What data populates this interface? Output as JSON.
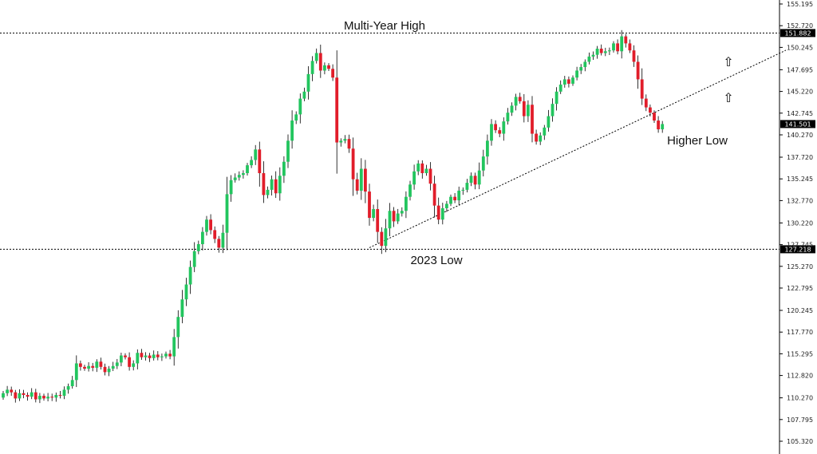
{
  "chart_data": {
    "type": "candlestick",
    "title": "",
    "xlabel": "",
    "ylabel": "",
    "ylim": [
      104.9,
      155.2
    ],
    "y_ticks": [
      "155.195",
      "152.720",
      "150.245",
      "147.695",
      "145.220",
      "142.745",
      "140.270",
      "137.720",
      "135.245",
      "132.770",
      "130.220",
      "127.745",
      "125.270",
      "122.795",
      "120.245",
      "117.770",
      "115.295",
      "112.820",
      "110.270",
      "107.795",
      "105.320"
    ],
    "grid": false,
    "colors": {
      "up": "#22c55e",
      "down": "#e11d2a",
      "wick": "#000000",
      "box": "#000000"
    },
    "levels": [
      {
        "value": 151.882,
        "label": "151.882",
        "style": "dotted"
      },
      {
        "value": 127.218,
        "label": "127.218",
        "style": "dotted"
      }
    ],
    "current_price": {
      "value": 141.501,
      "label": "141.501"
    },
    "annotations": [
      {
        "text": "Multi-Year High"
      },
      {
        "text": "2023 Low"
      },
      {
        "text": "Higher Low"
      }
    ],
    "trendline": {
      "from_index": 90,
      "from_value": 127.4,
      "to_index": 170,
      "to_value": 145.0
    },
    "arrows": [
      {
        "symbol": "⇧",
        "index": 154,
        "value": 148.0
      },
      {
        "symbol": "⇧",
        "index": 154,
        "value": 144.0
      }
    ],
    "closes": [
      110.8,
      111.2,
      110.9,
      110.2,
      110.8,
      110.6,
      110.4,
      110.9,
      110.1,
      110.5,
      110.2,
      110.4,
      110.3,
      110.6,
      110.5,
      111.2,
      111.6,
      112.3,
      114.2,
      113.8,
      113.6,
      113.9,
      113.7,
      114.4,
      113.8,
      113.2,
      113.6,
      113.9,
      114.3,
      115.1,
      114.9,
      113.8,
      114.2,
      115.4,
      114.9,
      115.1,
      114.8,
      115.2,
      114.9,
      115.0,
      115.3,
      115.0,
      117.2,
      119.5,
      121.5,
      123.2,
      125.2,
      127.0,
      127.8,
      129.2,
      130.6,
      129.4,
      128.4,
      127.4,
      129.1,
      133.5,
      135.1,
      135.4,
      135.7,
      135.9,
      136.8,
      137.4,
      138.6,
      135.9,
      133.4,
      134.0,
      135.2,
      133.6,
      135.6,
      137.2,
      139.6,
      141.9,
      142.6,
      144.4,
      145.2,
      147.2,
      148.7,
      149.6,
      147.6,
      148.2,
      147.8,
      146.8,
      139.4,
      139.6,
      139.8,
      138.7,
      135.2,
      133.9,
      136.4,
      133.8,
      130.8,
      131.8,
      129.2,
      127.6,
      129.6,
      131.6,
      130.4,
      131.3,
      131.6,
      133.2,
      134.6,
      136.1,
      137.0,
      135.9,
      136.4,
      134.7,
      132.2,
      130.6,
      131.9,
      132.4,
      133.2,
      132.8,
      133.9,
      134.0,
      134.8,
      135.6,
      134.6,
      136.2,
      137.8,
      139.6,
      141.5,
      140.8,
      140.4,
      141.8,
      142.8,
      143.6,
      144.6,
      144.1,
      142.4,
      143.7,
      140.4,
      139.5,
      140.2,
      141.1,
      142.4,
      143.8,
      145.2,
      146.0,
      146.6,
      146.1,
      146.8,
      147.6,
      148.0,
      148.6,
      149.2,
      149.4,
      150.1,
      149.6,
      149.8,
      149.9,
      150.7,
      149.8,
      151.5,
      150.7,
      149.9,
      148.6,
      146.6,
      144.4,
      143.4,
      142.8,
      141.9,
      140.9,
      141.5
    ],
    "opens": [
      110.3,
      110.8,
      111.2,
      110.9,
      110.2,
      110.8,
      110.6,
      110.4,
      110.9,
      110.1,
      110.5,
      110.2,
      110.4,
      110.3,
      110.6,
      110.5,
      111.2,
      111.6,
      112.3,
      114.2,
      113.8,
      113.6,
      113.9,
      113.7,
      114.4,
      113.8,
      113.2,
      113.6,
      113.9,
      114.3,
      115.1,
      114.9,
      113.8,
      114.2,
      115.4,
      114.9,
      115.1,
      114.8,
      115.2,
      114.9,
      115.0,
      115.3,
      115.0,
      117.2,
      119.5,
      121.5,
      123.2,
      125.2,
      127.0,
      127.8,
      129.2,
      130.6,
      129.4,
      128.4,
      127.4,
      129.1,
      133.5,
      135.1,
      135.4,
      135.7,
      135.9,
      136.8,
      137.4,
      138.6,
      135.9,
      133.4,
      134.0,
      135.2,
      133.6,
      135.6,
      137.2,
      139.6,
      141.9,
      142.6,
      144.4,
      145.2,
      147.2,
      148.7,
      149.6,
      147.6,
      148.2,
      147.8,
      146.8,
      139.4,
      139.6,
      139.8,
      138.7,
      135.2,
      133.9,
      136.4,
      133.8,
      130.8,
      131.8,
      129.2,
      127.6,
      129.6,
      131.6,
      130.4,
      131.3,
      131.6,
      133.2,
      134.6,
      136.1,
      137.0,
      135.9,
      136.4,
      134.7,
      132.2,
      130.6,
      131.9,
      132.4,
      133.2,
      132.8,
      133.9,
      134.0,
      134.8,
      135.6,
      134.6,
      136.2,
      137.8,
      139.6,
      141.5,
      140.8,
      140.4,
      141.8,
      142.8,
      143.6,
      144.6,
      144.1,
      142.4,
      143.7,
      140.4,
      139.5,
      140.2,
      141.1,
      142.4,
      143.8,
      145.2,
      146.0,
      146.6,
      146.1,
      146.8,
      147.6,
      148.0,
      148.6,
      149.2,
      149.4,
      150.1,
      149.6,
      149.8,
      149.9,
      150.7,
      149.8,
      151.5,
      150.7,
      149.9,
      148.6,
      146.6,
      144.4,
      143.4,
      142.8,
      141.9,
      140.9
    ]
  }
}
